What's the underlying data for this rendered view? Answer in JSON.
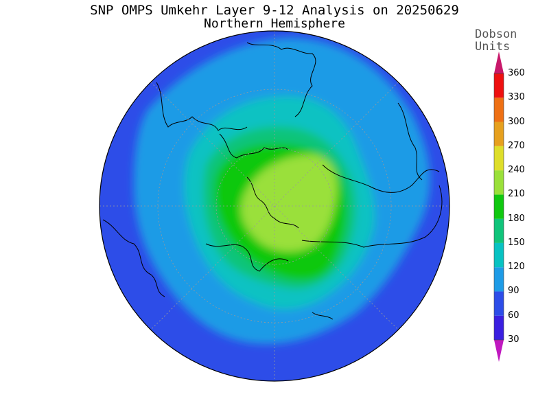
{
  "title": {
    "line1": "SNP OMPS Umkehr Layer 9-12 Analysis on 20250629",
    "line2": "Northern Hemisphere"
  },
  "colorbar": {
    "title_line1": "Dobson",
    "title_line2": "Units",
    "levels": [
      {
        "value": "30",
        "color": "#7a00c8"
      },
      {
        "value": "60",
        "color": "#3a1fe0"
      },
      {
        "value": "90",
        "color": "#2d4de8"
      },
      {
        "value": "120",
        "color": "#1e9be6"
      },
      {
        "value": "150",
        "color": "#08c2c2"
      },
      {
        "value": "180",
        "color": "#10c47a"
      },
      {
        "value": "210",
        "color": "#10c810"
      },
      {
        "value": "240",
        "color": "#9ae03a"
      },
      {
        "value": "270",
        "color": "#dede2a"
      },
      {
        "value": "300",
        "color": "#e6a01e"
      },
      {
        "value": "330",
        "color": "#ee7014"
      },
      {
        "value": "360",
        "color": "#ee1010"
      }
    ],
    "below_color": "#c018c0",
    "above_color": "#c8186a"
  }
}
